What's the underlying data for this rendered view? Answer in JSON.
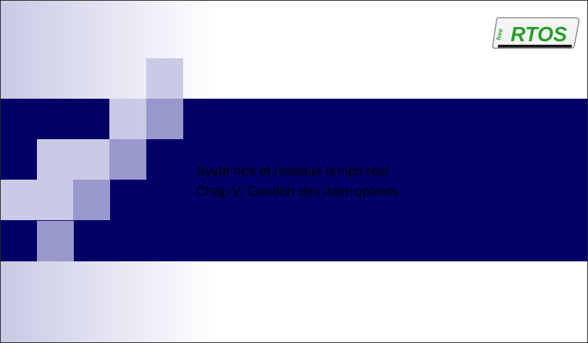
{
  "slide": {
    "title_line1": "Systèmes et réseaux temps réel",
    "title_line2": "Chap V: Gestion des interruptions"
  },
  "logo": {
    "prefix": "free",
    "name": "RTOS",
    "accent_color": "#2a9d2a"
  },
  "colors": {
    "band": "#000066",
    "square_light": "#cacae6",
    "square_mid": "#9898cc",
    "gradient_left": "#c8c8e4"
  }
}
